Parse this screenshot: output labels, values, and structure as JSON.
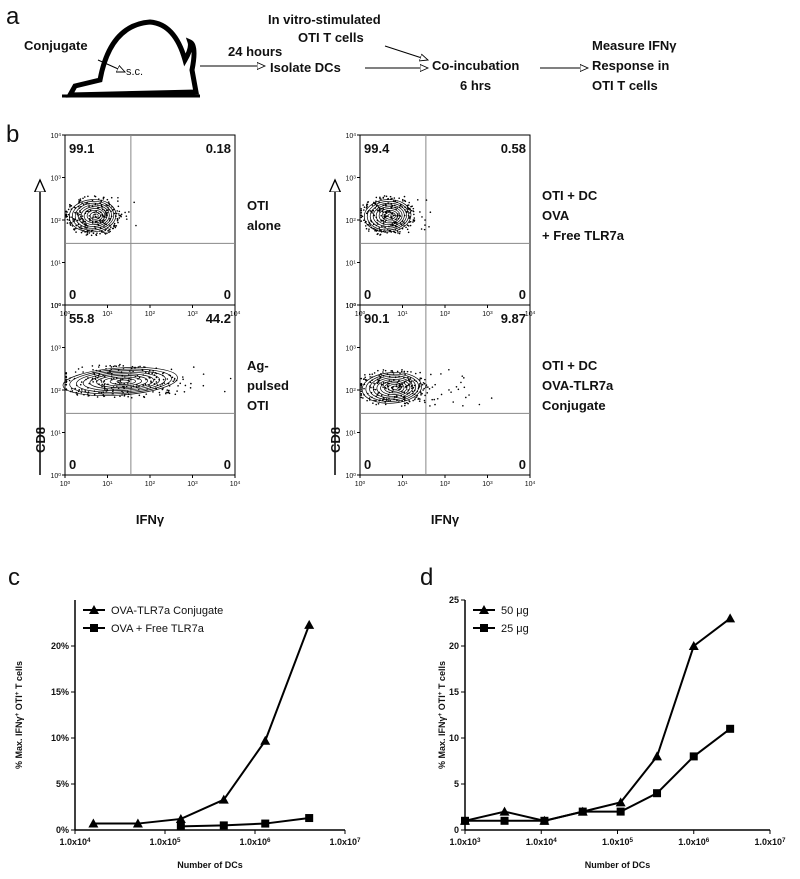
{
  "panel_a": {
    "label": "a",
    "conjugate": "Conjugate",
    "route": "s.c.",
    "time": "24 hours",
    "isolate": "Isolate DCs",
    "stimulated": [
      "In vitro-stimulated",
      "OTI T cells"
    ],
    "coincubation": [
      "Co-incubation",
      "6 hrs"
    ],
    "measure": [
      "Measure IFNγ",
      "Response in",
      "OTI T cells"
    ]
  },
  "panel_b": {
    "label": "b",
    "y_label": "CD8",
    "x_label": "IFNγ",
    "ticks": {
      "base": "10",
      "exponents": [
        0,
        1,
        2,
        3,
        4
      ]
    },
    "plots": [
      {
        "quadrants": [
          99.1,
          0.18,
          0,
          0
        ],
        "label": [
          "OTI",
          "alone"
        ]
      },
      {
        "quadrants": [
          99.4,
          0.58,
          0,
          0
        ],
        "label": [
          "OTI + DC",
          "OVA",
          "+ Free TLR7a"
        ]
      },
      {
        "quadrants": [
          55.8,
          44.2,
          0,
          0
        ],
        "label": [
          "Ag-",
          "pulsed",
          "OTI"
        ]
      },
      {
        "quadrants": [
          90.1,
          9.87,
          0,
          0
        ],
        "label": [
          "OTI + DC",
          "OVA-TLR7a",
          "Conjugate"
        ]
      }
    ]
  },
  "chart_data": [
    {
      "type": "line",
      "panel": "c",
      "xlabel": "Number of DCs",
      "ylabel": [
        "% Max. IFNγ",
        "+",
        " OTI",
        "+",
        " T cells"
      ],
      "xscale": "log",
      "xlim": [
        10000,
        10000000
      ],
      "xticks": [
        {
          "value": 10000,
          "label": [
            "1.0x10",
            "4"
          ]
        },
        {
          "value": 100000,
          "label": [
            "1.0x10",
            "5"
          ]
        },
        {
          "value": 1000000,
          "label": [
            "1.0x10",
            "6"
          ]
        },
        {
          "value": 10000000,
          "label": [
            "1.0x10",
            "7"
          ]
        }
      ],
      "ylim": [
        0,
        25
      ],
      "yticks": [
        {
          "value": 0,
          "label": "0%"
        },
        {
          "value": 5,
          "label": "5%"
        },
        {
          "value": 10,
          "label": "10%"
        },
        {
          "value": 15,
          "label": "15%"
        },
        {
          "value": 20,
          "label": "20%"
        }
      ],
      "legend": "upper left",
      "x": [
        16000,
        50000,
        150000,
        450000,
        1300000,
        4000000
      ],
      "series": [
        {
          "name": "OVA-TLR7a Conjugate",
          "color": "#000000",
          "marker": "triangle",
          "values": [
            0.7,
            0.7,
            1.2,
            3.3,
            9.7,
            22.3
          ]
        },
        {
          "name": "OVA + Free TLR7a",
          "color": "#000000",
          "marker": "square",
          "values": [
            null,
            null,
            0.4,
            0.5,
            0.7,
            1.3
          ]
        }
      ]
    },
    {
      "type": "line",
      "panel": "d",
      "xlabel": "Number of DCs",
      "ylabel": [
        "% Max. IFNγ",
        "+",
        " OTI",
        "+",
        " T cells"
      ],
      "xscale": "log",
      "xlim": [
        1000,
        10000000
      ],
      "xticks": [
        {
          "value": 1000,
          "label": [
            "1.0x10",
            "3"
          ]
        },
        {
          "value": 10000,
          "label": [
            "1.0x10",
            "4"
          ]
        },
        {
          "value": 100000,
          "label": [
            "1.0x10",
            "5"
          ]
        },
        {
          "value": 1000000,
          "label": [
            "1.0x10",
            "6"
          ]
        },
        {
          "value": 10000000,
          "label": [
            "1.0x10",
            "7"
          ]
        }
      ],
      "ylim": [
        0,
        25
      ],
      "yticks": [
        0,
        5,
        10,
        15,
        20,
        25
      ],
      "legend": "upper left",
      "x": [
        1000,
        3300,
        11000,
        35000,
        110000,
        330000,
        1000000,
        3000000
      ],
      "series": [
        {
          "name": "50 μg",
          "color": "#000000",
          "marker": "triangle",
          "values": [
            1,
            2,
            1,
            2,
            3,
            8,
            20,
            23
          ]
        },
        {
          "name": "25 μg",
          "color": "#000000",
          "marker": "square",
          "values": [
            1,
            1,
            1,
            2,
            2,
            4,
            8,
            11
          ]
        }
      ]
    }
  ]
}
